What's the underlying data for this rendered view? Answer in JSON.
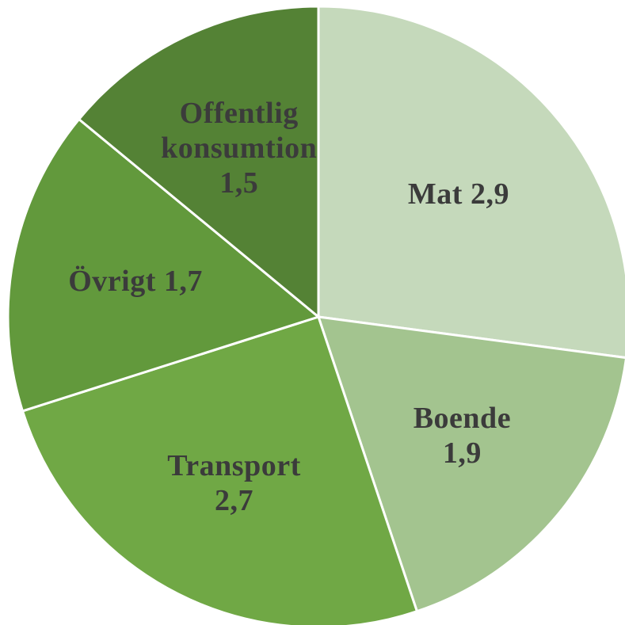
{
  "chart_data": {
    "type": "pie",
    "categories": [
      "Mat",
      "Boende",
      "Transport",
      "Övrigt",
      "Offentlig konsumtion"
    ],
    "values": [
      2.9,
      1.9,
      2.7,
      1.7,
      1.5
    ],
    "value_labels": [
      "2,9",
      "1,9",
      "2,7",
      "1,7",
      "1,5"
    ],
    "colors": [
      "#c5d9bb",
      "#a3c48f",
      "#70a845",
      "#62993c",
      "#548235"
    ]
  }
}
